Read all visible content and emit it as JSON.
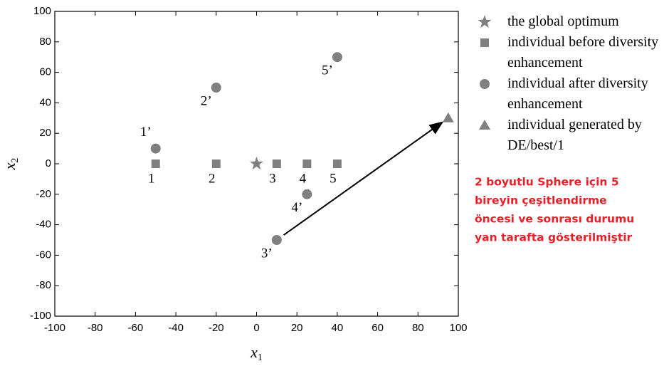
{
  "chart_data": {
    "type": "scatter",
    "xlabel": {
      "base": "x",
      "sub": "1"
    },
    "ylabel": {
      "base": "x",
      "sub": "2"
    },
    "xlim": [
      -100,
      100
    ],
    "xticks": [
      -100,
      -80,
      -60,
      -40,
      -20,
      0,
      20,
      40,
      60,
      80,
      100
    ],
    "ylim": [
      -100,
      100
    ],
    "yticks": [
      -100,
      -80,
      -60,
      -40,
      -20,
      0,
      20,
      40,
      60,
      80,
      100
    ],
    "series": [
      {
        "name": "the global optimum",
        "marker": "star",
        "color": "#808080",
        "x": [
          0
        ],
        "values": [
          0
        ]
      },
      {
        "name": "individual before diversity enhancement",
        "marker": "square",
        "color": "#808080",
        "x": [
          -50,
          -20,
          10,
          25,
          40
        ],
        "values": [
          0,
          0,
          0,
          0,
          0
        ],
        "labels": [
          "1",
          "2",
          "3",
          "4",
          "5"
        ]
      },
      {
        "name": "individual after diversity enhancement",
        "marker": "circle",
        "color": "#808080",
        "x": [
          -50,
          -20,
          10,
          25,
          40
        ],
        "values": [
          10,
          50,
          -50,
          -20,
          70
        ],
        "labels": [
          "1’",
          "2’",
          "3’",
          "4’",
          "5’"
        ]
      },
      {
        "name": "individual generated by DE/best/1",
        "marker": "triangle",
        "color": "#808080",
        "x": [
          95
        ],
        "values": [
          30
        ]
      }
    ],
    "annotation": [
      "2 boyutlu Sphere için 5",
      "bireyin çeşitlendirme",
      "öncesi ve sonrası durumu",
      "yan tarafta gösterilmiştir"
    ],
    "annotation_color": "#e8202a"
  }
}
